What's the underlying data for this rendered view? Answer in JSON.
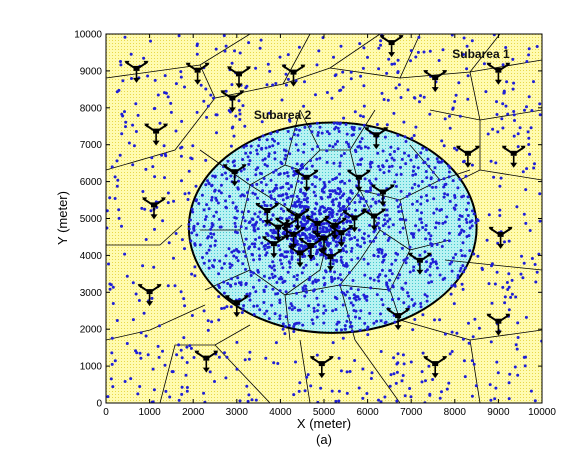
{
  "chart_data": {
    "type": "scatter",
    "title": "",
    "xlabel": "X (meter)",
    "ylabel": "Y (meter)",
    "caption": "(a)",
    "xlim": [
      0,
      10000
    ],
    "ylim": [
      0,
      10000
    ],
    "xticks": [
      "0",
      "1000",
      "2000",
      "3000",
      "4000",
      "5000",
      "6000",
      "7000",
      "8000",
      "9000",
      "10000"
    ],
    "yticks": [
      "0",
      "1000",
      "2000",
      "3000",
      "4000",
      "5000",
      "6000",
      "7000",
      "8000",
      "9000",
      "10000"
    ],
    "grid": false,
    "annotations": [
      {
        "text": "Subarea 1",
        "x": 8600,
        "y": 9350
      },
      {
        "text": "Subarea 2",
        "x": 4050,
        "y": 7700
      }
    ],
    "subarea2_ellipse": {
      "cx": 5200,
      "cy": 4750,
      "rx": 3300,
      "ry": 2850
    },
    "colors": {
      "subarea1_fill": "#fffbb0",
      "subarea1_dots": "#e8d84a",
      "subarea2_fill": "#b8f2f2",
      "subarea2_dots": "#46c8cc",
      "user_points": "#1f1fd6",
      "boundary": "#000000"
    },
    "base_stations": [
      [
        700,
        9000
      ],
      [
        3050,
        8850
      ],
      [
        2100,
        8950
      ],
      [
        4300,
        8900
      ],
      [
        6550,
        9700
      ],
      [
        7550,
        8750
      ],
      [
        9000,
        8950
      ],
      [
        2900,
        8200
      ],
      [
        1150,
        7300
      ],
      [
        6200,
        7200
      ],
      [
        8300,
        6700
      ],
      [
        9350,
        6700
      ],
      [
        2950,
        6200
      ],
      [
        4600,
        6050
      ],
      [
        5800,
        6050
      ],
      [
        6350,
        5650
      ],
      [
        1100,
        5300
      ],
      [
        3700,
        5150
      ],
      [
        4400,
        5000
      ],
      [
        4850,
        4800
      ],
      [
        5250,
        4750
      ],
      [
        5700,
        4950
      ],
      [
        6150,
        5000
      ],
      [
        3950,
        4700
      ],
      [
        4300,
        4500
      ],
      [
        4700,
        4200
      ],
      [
        5000,
        4400
      ],
      [
        5400,
        4550
      ],
      [
        4450,
        4000
      ],
      [
        5150,
        3900
      ],
      [
        3850,
        4250
      ],
      [
        4150,
        4750
      ],
      [
        7200,
        3800
      ],
      [
        9050,
        4500
      ],
      [
        1000,
        2950
      ],
      [
        3000,
        2650
      ],
      [
        6700,
        2300
      ],
      [
        9000,
        2150
      ],
      [
        2300,
        1150
      ],
      [
        4950,
        1000
      ],
      [
        7550,
        1000
      ]
    ],
    "users": {
      "subarea1_count": 600,
      "subarea2_count": 1000,
      "cluster_center": [
        4700,
        4700
      ],
      "cluster_count": 420
    }
  }
}
